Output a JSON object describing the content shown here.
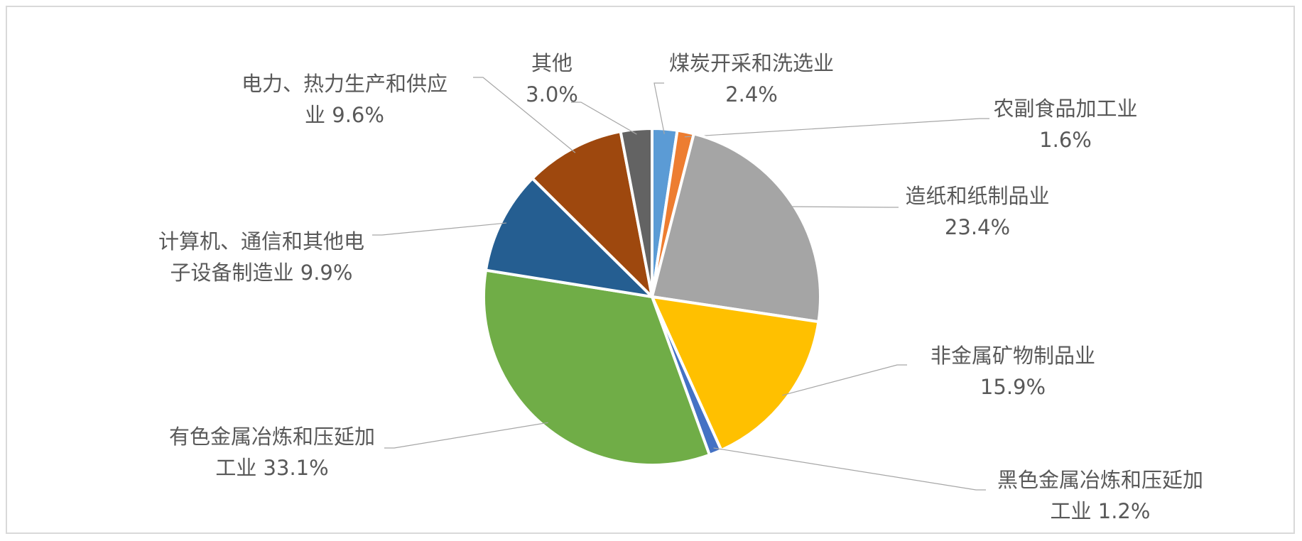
{
  "chart_data": {
    "type": "pie",
    "categories": [
      "煤炭开采和洗选业",
      "农副食品加工业",
      "造纸和纸制品业",
      "非金属矿物制品业",
      "黑色金属冶炼和压延加工业",
      "有色金属冶炼和压延加工业",
      "计算机、通信和其他电子设备制造业",
      "电力、热力生产和供应业",
      "其他"
    ],
    "values": [
      2.4,
      1.6,
      23.4,
      15.9,
      1.2,
      33.1,
      9.9,
      9.6,
      3.0
    ],
    "value_labels": [
      "2.4%",
      "1.6%",
      "23.4%",
      "15.9%",
      "1.2%",
      "33.1%",
      "9.9%",
      "9.6%",
      "3.0%"
    ],
    "colors": [
      "#5b9bd5",
      "#ed7d31",
      "#a5a5a5",
      "#ffc000",
      "#4472c4",
      "#70ad47",
      "#255e91",
      "#9e480e",
      "#636363"
    ]
  }
}
